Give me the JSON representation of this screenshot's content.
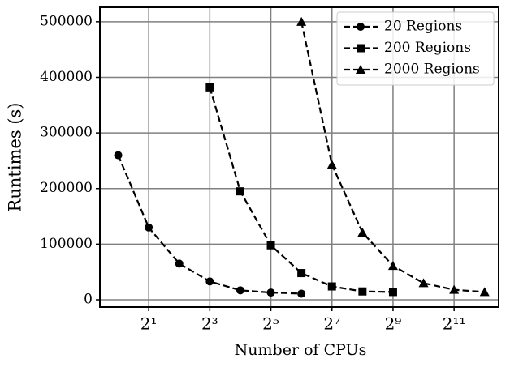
{
  "chart_data": {
    "type": "line",
    "xlabel": "Number of CPUs",
    "ylabel": "Runtimes (s)",
    "xscale": "log2",
    "xlim": [
      0.66,
      5630
    ],
    "ylim": [
      -13100,
      526000
    ],
    "xticks": [
      {
        "value": 2,
        "label": "2¹"
      },
      {
        "value": 8,
        "label": "2³"
      },
      {
        "value": 32,
        "label": "2⁵"
      },
      {
        "value": 128,
        "label": "2⁷"
      },
      {
        "value": 512,
        "label": "2⁹"
      },
      {
        "value": 2048,
        "label": "2¹¹"
      }
    ],
    "yticks": [
      0,
      100000,
      200000,
      300000,
      400000,
      500000
    ],
    "grid": true,
    "legend": "upper right",
    "linestyle": "dashed",
    "series": [
      {
        "name": "20 Regions",
        "color": "#000000",
        "marker": "circle",
        "x": [
          1,
          2,
          4,
          8,
          16,
          32,
          64
        ],
        "values": [
          260000,
          130000,
          65000,
          33000,
          17000,
          13000,
          11000
        ]
      },
      {
        "name": "200 Regions",
        "color": "#000000",
        "marker": "square",
        "x": [
          8,
          16,
          32,
          64,
          128,
          256,
          512
        ],
        "values": [
          382000,
          195000,
          98000,
          48000,
          24000,
          15000,
          14000
        ]
      },
      {
        "name": "2000 Regions",
        "color": "#000000",
        "marker": "triangle",
        "x": [
          64,
          128,
          256,
          512,
          1024,
          2048,
          4096
        ],
        "values": [
          500000,
          243000,
          121000,
          61000,
          30000,
          18000,
          14000
        ]
      }
    ]
  }
}
